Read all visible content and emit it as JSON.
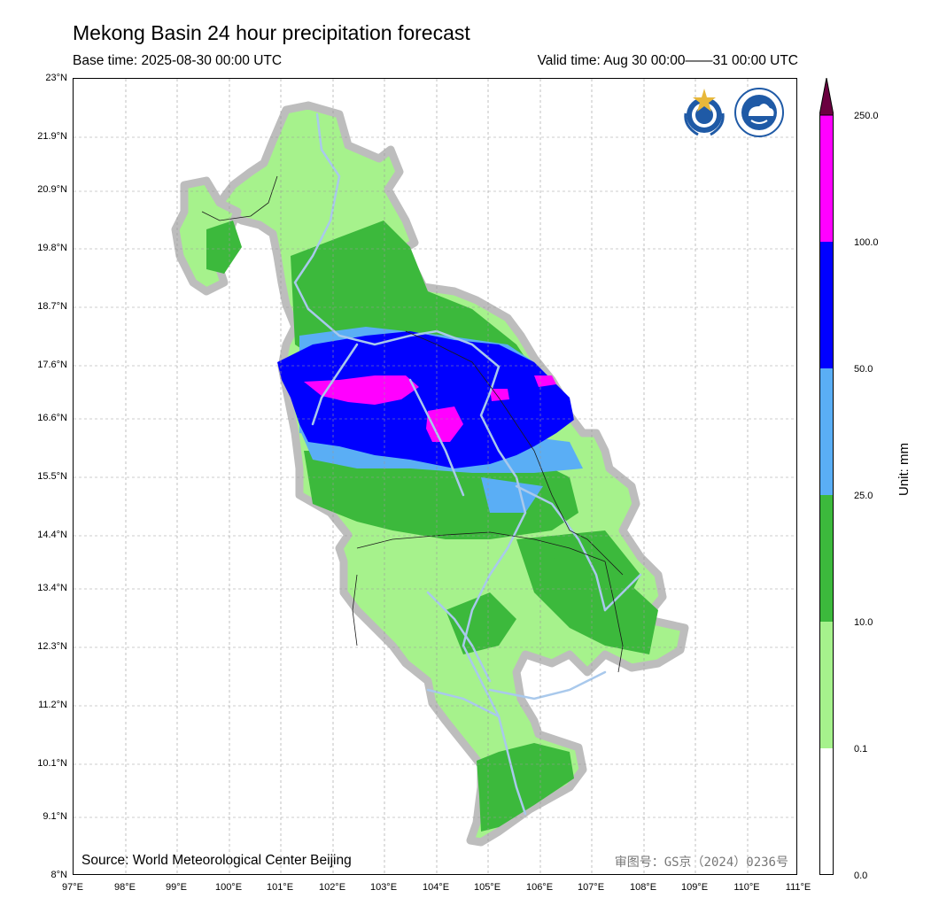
{
  "header": {
    "title": "Mekong Basin 24 hour precipitation forecast",
    "base_time": "Base time: 2025-08-30 00:00 UTC",
    "valid_time": "Valid time: Aug 30 00:00——31 00:00 UTC"
  },
  "axes": {
    "lat_labels": [
      "23°N",
      "21.9°N",
      "20.9°N",
      "19.8°N",
      "18.7°N",
      "17.6°N",
      "16.6°N",
      "15.5°N",
      "14.4°N",
      "13.4°N",
      "12.3°N",
      "11.2°N",
      "10.1°N",
      "9.1°N",
      "8°N"
    ],
    "lon_labels": [
      "97°E",
      "98°E",
      "99°E",
      "100°E",
      "101°E",
      "102°E",
      "103°E",
      "104°E",
      "105°E",
      "106°E",
      "107°E",
      "108°E",
      "109°E",
      "110°E",
      "111°E"
    ]
  },
  "footer": {
    "source": "Source: World Meteorological Center Beijing",
    "approval": "审图号：GS京（2024）0236号"
  },
  "colorbar": {
    "unit": "Unit: mm",
    "levels": [
      "250.0",
      "100.0",
      "50.0",
      "25.0",
      "10.0",
      "0.1",
      "0.0"
    ],
    "colors": {
      "extreme": "#6b0040",
      "c100_250": "#ff00ff",
      "c50_100": "#0000ff",
      "c25_50": "#5aaef5",
      "c10_25": "#3cb93c",
      "c01_10": "#a6f28c",
      "c0_01": "#ffffff"
    }
  },
  "map": {
    "river_color": "#a9c9ec",
    "basin_outline_color": "#bdbdbd",
    "logos": [
      "wmo-logo",
      "cma-logo"
    ]
  }
}
